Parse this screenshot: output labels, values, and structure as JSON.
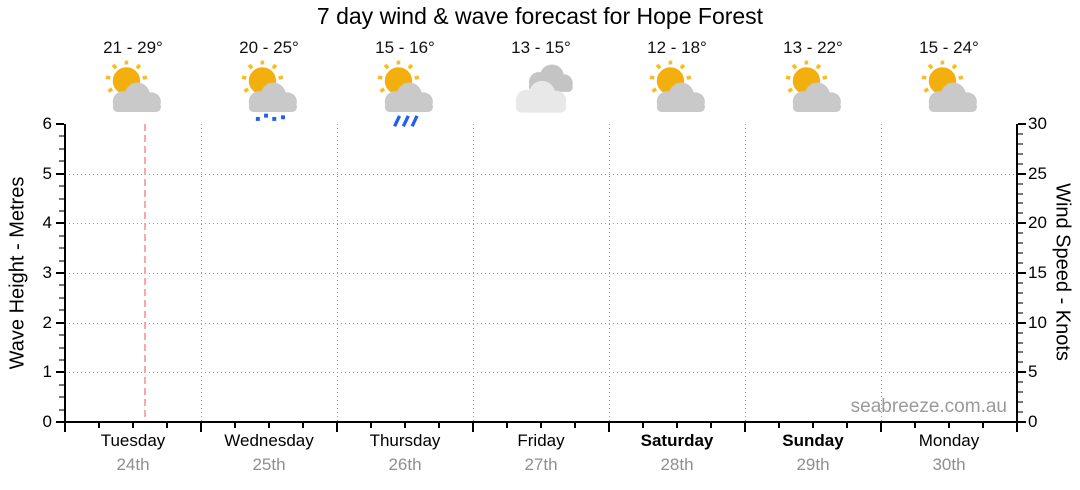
{
  "watermark": "seabreeze.com.au",
  "colors": {
    "axis": "#000000",
    "grid": "#9a9a9a",
    "now_line": "#f8a8a8",
    "sun": "#f2af0d",
    "sun_ray": "#f4bd27",
    "cloud": "#c9c9c9",
    "cloud_dark": "#c4c4c4",
    "cloud_light": "#e8e8e8",
    "rain_blue": "#2060f0",
    "date_gray": "#8f8f8f",
    "watermark_gray": "#9a9a9a"
  },
  "chart_data": {
    "type": "table",
    "title": "7 day wind & wave forecast for Hope Forest",
    "left_axis": {
      "label": "Wave Height - Metres",
      "min": 0,
      "max": 6,
      "ticks": [
        0,
        1,
        2,
        3,
        4,
        5,
        6
      ],
      "minor_step": 0.25
    },
    "right_axis": {
      "label": "Wind Speed - Knots",
      "min": 0,
      "max": 30,
      "ticks": [
        0,
        5,
        10,
        15,
        20,
        25,
        30
      ],
      "minor_step": 1
    },
    "x_axis": {
      "days_shown": 7,
      "minor_ticks_per_day": 4,
      "gridlines_at_day_boundaries": true
    },
    "grid": "dotted horizontal at integer wave heights 1-5 and vertical at day boundaries",
    "series": [],
    "now_marker": {
      "day_index": 0,
      "day_fraction": 0.59,
      "style": "dashed vertical line"
    },
    "days": [
      {
        "name": "Tuesday",
        "date": "24th",
        "temp_range": "21 - 29°",
        "icon": "partly-cloudy",
        "weekend": false
      },
      {
        "name": "Wednesday",
        "date": "25th",
        "temp_range": "20 - 25°",
        "icon": "partly-cloudy-drizzle",
        "weekend": false
      },
      {
        "name": "Thursday",
        "date": "26th",
        "temp_range": "15 - 16°",
        "icon": "partly-cloudy-rain",
        "weekend": false
      },
      {
        "name": "Friday",
        "date": "27th",
        "temp_range": "13 - 15°",
        "icon": "cloudy",
        "weekend": false
      },
      {
        "name": "Saturday",
        "date": "28th",
        "temp_range": "12 - 18°",
        "icon": "partly-cloudy",
        "weekend": true
      },
      {
        "name": "Sunday",
        "date": "29th",
        "temp_range": "13 - 22°",
        "icon": "partly-cloudy",
        "weekend": true
      },
      {
        "name": "Monday",
        "date": "30th",
        "temp_range": "15 - 24°",
        "icon": "partly-cloudy",
        "weekend": false
      }
    ]
  }
}
